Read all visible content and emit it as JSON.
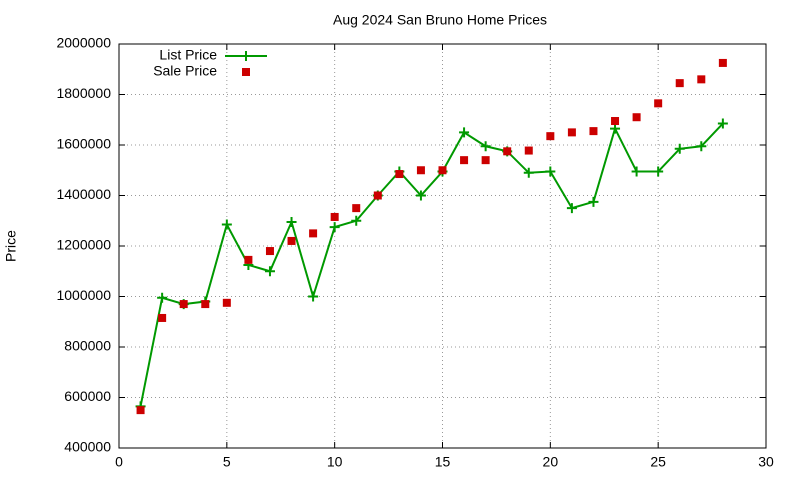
{
  "chart_data": {
    "type": "line",
    "title": "Aug 2024 San Bruno Home Prices",
    "ylabel": "Price",
    "x": [
      1,
      2,
      3,
      4,
      5,
      6,
      7,
      8,
      9,
      10,
      11,
      12,
      13,
      14,
      15,
      16,
      17,
      18,
      19,
      20,
      21,
      22,
      23,
      24,
      25,
      26,
      27,
      28
    ],
    "series": [
      {
        "name": "List Price",
        "color": "#009900",
        "line": true,
        "marker": "plus",
        "values": [
          565000,
          995000,
          970000,
          980000,
          1285000,
          1125000,
          1100000,
          1295000,
          1000000,
          1275000,
          1300000,
          1400000,
          1495000,
          1400000,
          1495000,
          1650000,
          1595000,
          1575000,
          1490000,
          1495000,
          1350000,
          1375000,
          1665000,
          1495000,
          1495000,
          1585000,
          1595000,
          1685000
        ]
      },
      {
        "name": "Sale Price",
        "color": "#cc0000",
        "line": false,
        "marker": "square",
        "values": [
          550000,
          915000,
          970000,
          970000,
          975000,
          1145000,
          1180000,
          1220000,
          1250000,
          1315000,
          1350000,
          1400000,
          1485000,
          1500000,
          1500000,
          1540000,
          1540000,
          1575000,
          1578000,
          1635000,
          1650000,
          1655000,
          1695000,
          1710000,
          1765000,
          1845000,
          1860000,
          1925000
        ]
      }
    ],
    "xlim": [
      0,
      30
    ],
    "xticks": [
      0,
      5,
      10,
      15,
      20,
      25,
      30
    ],
    "ylim": [
      400000,
      2000000
    ],
    "yticks": [
      400000,
      600000,
      800000,
      1000000,
      1200000,
      1400000,
      1600000,
      1800000,
      2000000
    ],
    "grid": true,
    "legend": "top-left"
  }
}
